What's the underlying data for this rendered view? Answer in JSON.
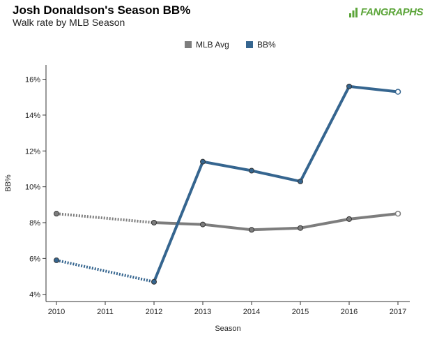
{
  "header": {
    "title": "Josh Donaldson's Season BB%",
    "subtitle": "Walk rate by MLB Season",
    "brand": "FANGRAPHS"
  },
  "colors": {
    "mlb_avg": "#7d7d7d",
    "bb": "#35658f",
    "brand": "#5ca53a"
  },
  "chart_data": {
    "type": "line",
    "title": "Josh Donaldson's Season BB%",
    "subtitle": "Walk rate by MLB Season",
    "xlabel": "Season",
    "ylabel": "BB%",
    "x": [
      2010,
      2011,
      2012,
      2013,
      2014,
      2015,
      2016,
      2017
    ],
    "xlim": [
      2010,
      2017
    ],
    "ylim": [
      3.6,
      16.8
    ],
    "yticks": [
      4,
      6,
      8,
      10,
      12,
      14,
      16
    ],
    "ytick_labels": [
      "4%",
      "6%",
      "8%",
      "10%",
      "12%",
      "14%",
      "16%"
    ],
    "legend": [
      "MLB Avg",
      "BB%"
    ],
    "legend_position": "top-center",
    "series": [
      {
        "name": "MLB Avg",
        "points": [
          [
            2010,
            8.5
          ],
          [
            2012,
            8.0
          ],
          [
            2013,
            7.9
          ],
          [
            2014,
            7.6
          ],
          [
            2015,
            7.7
          ],
          [
            2016,
            8.2
          ],
          [
            2017,
            8.5
          ]
        ],
        "dotted_segments": [
          0
        ],
        "open_last_marker": true
      },
      {
        "name": "BB%",
        "points": [
          [
            2010,
            5.9
          ],
          [
            2012,
            4.7
          ],
          [
            2013,
            11.4
          ],
          [
            2014,
            10.9
          ],
          [
            2015,
            10.3
          ],
          [
            2016,
            15.6
          ],
          [
            2017,
            15.3
          ]
        ],
        "dotted_segments": [
          0
        ],
        "open_last_marker": true
      }
    ]
  }
}
